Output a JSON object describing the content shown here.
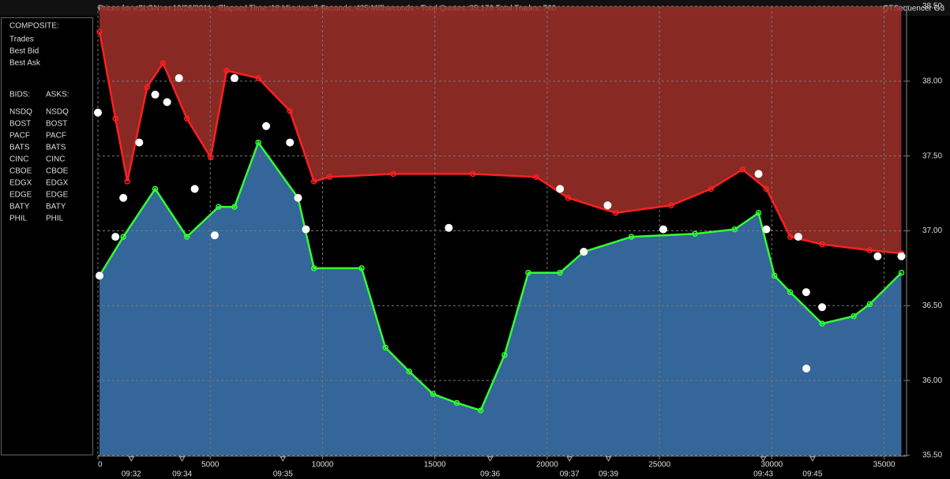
{
  "header": {
    "title": "Prices for  eSLGN  on  10/26/2011  -  Elapsed Time: 16 Minutes, 5 Seconds, 425 Milliseconds  -  Total Quotes: 35,176  Total Trades: 760",
    "app": "QTSequencer G3"
  },
  "legend": {
    "composite_heading": "COMPOSITE:",
    "bids_heading": "BIDS:",
    "asks_heading": "ASKS:",
    "bids": [
      {
        "name": "NSDQ",
        "color": "#4a7fff"
      },
      {
        "name": "BOST",
        "color": "#a8d860"
      },
      {
        "name": "PACF",
        "color": "#40f0f0"
      },
      {
        "name": "BATS",
        "color": "#8ccfff"
      },
      {
        "name": "CINC",
        "color": "#5fa0a0"
      },
      {
        "name": "CBOE",
        "color": "#2a4fb0"
      },
      {
        "name": "EDGX",
        "color": "#3a9a5a"
      },
      {
        "name": "EDGE",
        "color": "#6aaa44"
      },
      {
        "name": "BATY",
        "color": "#4a70e0"
      },
      {
        "name": "PHIL",
        "color": "#7a9a30"
      }
    ],
    "asks": [
      {
        "name": "NSDQ",
        "color": "#ff9020"
      },
      {
        "name": "BOST",
        "color": "#d06060"
      },
      {
        "name": "PACF",
        "color": "#ffff50"
      },
      {
        "name": "BATS",
        "color": "#ffd890"
      },
      {
        "name": "CINC",
        "color": "#90c090"
      },
      {
        "name": "CBOE",
        "color": "#b06030"
      },
      {
        "name": "EDGX",
        "color": "#b05a30"
      },
      {
        "name": "EDGE",
        "color": "#c03030"
      },
      {
        "name": "BATY",
        "color": "#d02090"
      },
      {
        "name": "PHIL",
        "color": "#c03070"
      }
    ]
  },
  "chart_data": {
    "type": "line",
    "grid": true,
    "xlim": [
      0,
      36000
    ],
    "ylim": [
      35.5,
      38.5
    ],
    "xticks": [
      0,
      5000,
      10000,
      15000,
      20000,
      25000,
      30000,
      35000
    ],
    "yticks": [
      {
        "value": 35.5,
        "label": "35.50"
      },
      {
        "value": 36,
        "label": "36.00"
      },
      {
        "value": 36.5,
        "label": "36.50"
      },
      {
        "value": 37,
        "label": "37.00"
      },
      {
        "value": 37.5,
        "label": "37.50"
      },
      {
        "value": 38,
        "label": "38.00"
      },
      {
        "value": 38.5,
        "label": "38.50"
      }
    ],
    "time_ticks": [
      {
        "value": 1485,
        "label": "09:32"
      },
      {
        "value": 3747,
        "label": "09:34"
      },
      {
        "value": 8236,
        "label": "09:35"
      },
      {
        "value": 17462,
        "label": "09:36"
      },
      {
        "value": 20997,
        "label": "09:37"
      },
      {
        "value": 22729,
        "label": "09:39"
      },
      {
        "value": 29622,
        "label": "09:43"
      },
      {
        "value": 31814,
        "label": "09:45"
      }
    ],
    "series": [
      {
        "name": "Trades",
        "color": "#ffffff",
        "style": "points",
        "x": [
          0,
          70,
          780,
          1130,
          1840,
          2550,
          3080,
          3610,
          4310,
          5200,
          6080,
          7490,
          8550,
          8910,
          9260,
          15620,
          20570,
          21630,
          22690,
          25170,
          29410,
          29760,
          31180,
          31530,
          31540,
          32240,
          34710,
          35770
        ],
        "values": [
          37.79,
          36.7,
          36.96,
          37.22,
          37.59,
          37.91,
          37.86,
          38.02,
          37.28,
          36.97,
          38.02,
          37.7,
          37.59,
          37.22,
          37.01,
          37.02,
          37.28,
          36.86,
          37.17,
          37.01,
          37.38,
          37.01,
          36.96,
          36.59,
          36.08,
          36.49,
          36.83,
          36.83
        ]
      },
      {
        "name": "Best Bid",
        "color": "#33ff33",
        "fill": "#3d78b4",
        "style": "line-below",
        "x": [
          70,
          1130,
          2550,
          3960,
          5370,
          6080,
          7140,
          8910,
          9620,
          11740,
          12800,
          13860,
          14920,
          15980,
          17040,
          18100,
          19160,
          20570,
          21630,
          23750,
          26580,
          28350,
          29410,
          30120,
          30820,
          32240,
          33650,
          34360,
          35770
        ],
        "values": [
          36.7,
          36.96,
          37.28,
          36.96,
          37.16,
          37.16,
          37.59,
          37.22,
          36.75,
          36.75,
          36.22,
          36.06,
          35.91,
          35.85,
          35.8,
          36.17,
          36.72,
          36.72,
          36.86,
          36.96,
          36.98,
          37.01,
          37.12,
          36.7,
          36.59,
          36.38,
          36.43,
          36.51,
          36.72
        ]
      },
      {
        "name": "Best Ask",
        "color": "#ff2020",
        "fill": "#a0302a",
        "style": "line-above",
        "x": [
          70,
          780,
          1310,
          2190,
          2900,
          3960,
          5020,
          5730,
          7140,
          8550,
          9620,
          10320,
          13150,
          16690,
          19510,
          20930,
          23050,
          25520,
          27290,
          28700,
          29760,
          30820,
          32240,
          34360,
          35770
        ],
        "values": [
          38.33,
          37.75,
          37.33,
          37.96,
          38.12,
          37.75,
          37.49,
          38.07,
          38.02,
          37.8,
          37.33,
          37.36,
          37.38,
          37.38,
          37.36,
          37.22,
          37.12,
          37.17,
          37.28,
          37.41,
          37.28,
          36.96,
          36.91,
          36.87,
          36.85
        ]
      }
    ]
  }
}
